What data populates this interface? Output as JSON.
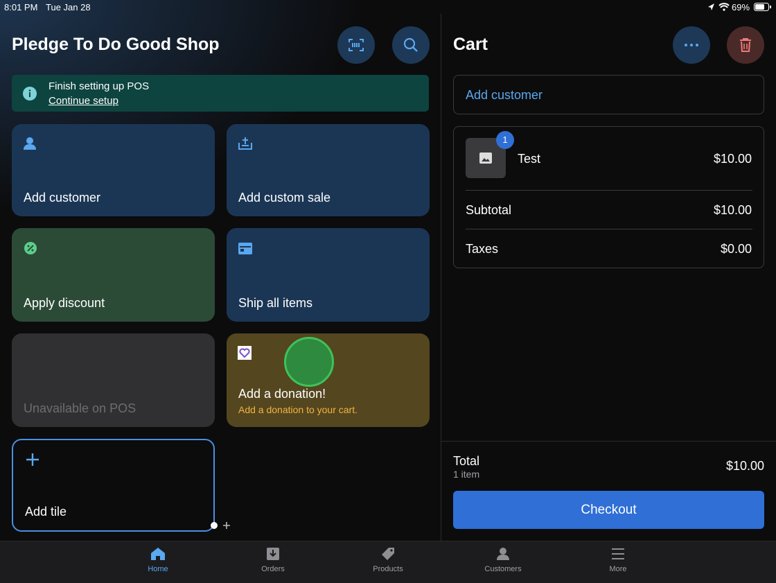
{
  "status_bar": {
    "time": "8:01 PM",
    "date": "Tue Jan 28",
    "battery": "69%"
  },
  "shop": {
    "title": "Pledge To Do Good Shop",
    "banner": {
      "title": "Finish setting up POS",
      "link": "Continue setup"
    },
    "tiles": [
      {
        "label": "Add customer"
      },
      {
        "label": "Add custom sale"
      },
      {
        "label": "Apply discount"
      },
      {
        "label": "Ship all items"
      },
      {
        "label": "Unavailable on POS"
      },
      {
        "label": "Add a donation!",
        "subtitle": "Add a donation to your cart."
      },
      {
        "label": "Add tile"
      }
    ]
  },
  "cart": {
    "title": "Cart",
    "add_customer": "Add customer",
    "item": {
      "badge": "1",
      "name": "Test",
      "price": "$10.00"
    },
    "rows": [
      {
        "label": "Subtotal",
        "value": "$10.00"
      },
      {
        "label": "Taxes",
        "value": "$0.00"
      }
    ],
    "total": {
      "label": "Total",
      "count": "1 item",
      "value": "$10.00"
    },
    "checkout": "Checkout"
  },
  "nav": [
    "Home",
    "Orders",
    "Products",
    "Customers",
    "More"
  ]
}
